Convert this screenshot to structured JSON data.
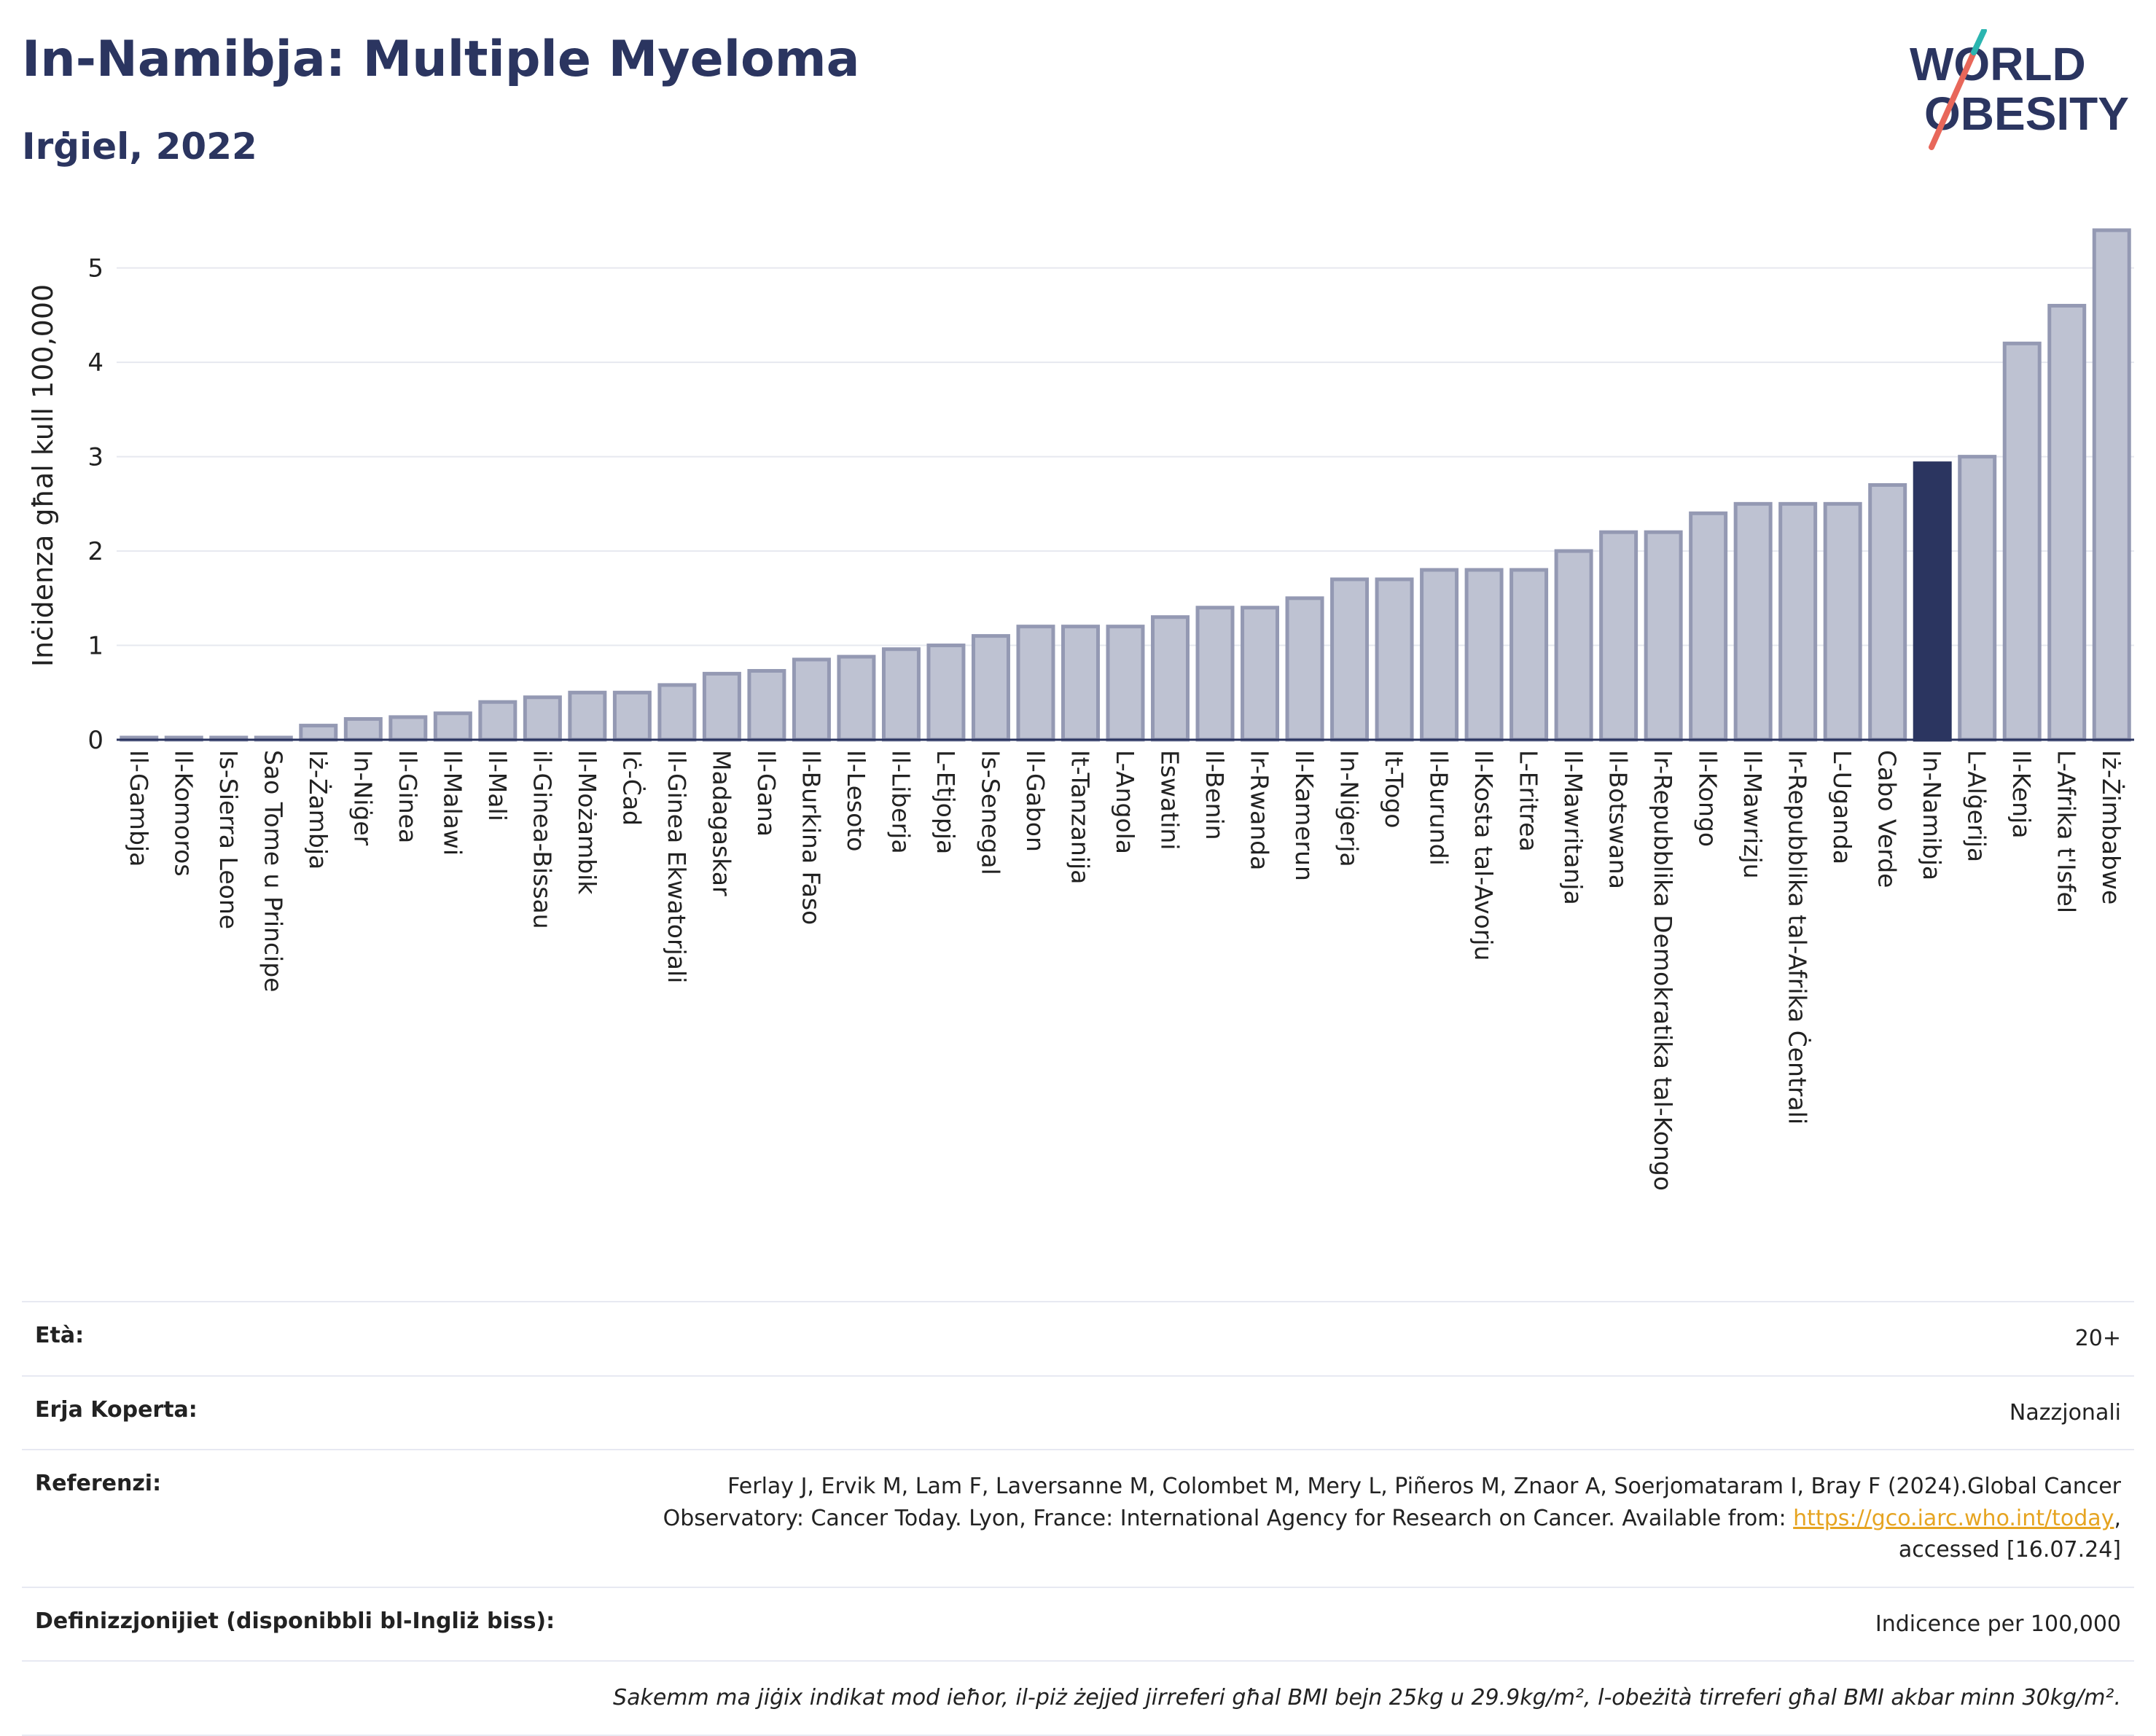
{
  "header": {
    "title": "In-Namibja: Multiple Myeloma",
    "subtitle": "Irġiel, 2022"
  },
  "logo": {
    "line1": "WORLD",
    "line2": "OBESITY"
  },
  "chart_data": {
    "type": "bar",
    "ylabel": "Inċidenza għal kull 100,000",
    "ylim": [
      0,
      5.6
    ],
    "yticks": [
      0,
      1,
      2,
      3,
      4,
      5
    ],
    "grid": true,
    "highlight": "In-Namibja",
    "colors": {
      "bar": "#bec2d2",
      "bar_edge": "#9499b3",
      "highlight": "#2b3560",
      "grid": "#e6e8ef"
    },
    "categories": [
      "Il-Gambja",
      "Il-Komoros",
      "Is-Sierra Leone",
      "Sao Tome u Principe",
      "Iż-Żambja",
      "In-Niġer",
      "Il-Ginea",
      "Il-Malawi",
      "Il-Mali",
      "il-Ginea-Bissau",
      "Il-Możambik",
      "Iċ-Ċad",
      "Il-Ginea Ekwatorjali",
      "Madagaskar",
      "Il-Gana",
      "Il-Burkina Faso",
      "Il-Lesoto",
      "Il-Liberja",
      "L-Etjopja",
      "Is-Senegal",
      "Il-Gabon",
      "It-Tanzanija",
      "L-Angola",
      "Eswatini",
      "Il-Benin",
      "Ir-Rwanda",
      "Il-Kamerun",
      "In-Niġerja",
      "It-Togo",
      "Il-Burundi",
      "Il-Kosta tal-Avorju",
      "L-Eritrea",
      "Il-Mawritanja",
      "Il-Botswana",
      "Ir-Repubblika Demokratika tal-Kongo",
      "Il-Kongo",
      "Il-Mawrizju",
      "Ir-Repubblika tal-Afrika Ċentrali",
      "L-Uganda",
      "Cabo Verde",
      "In-Namibja",
      "L-Alġerija",
      "Il-Kenja",
      "L-Afrika t'Isfel",
      "Iż-Żimbabwe"
    ],
    "values": [
      0.02,
      0.02,
      0.02,
      0.02,
      0.15,
      0.22,
      0.24,
      0.28,
      0.4,
      0.45,
      0.5,
      0.5,
      0.58,
      0.7,
      0.73,
      0.85,
      0.88,
      0.96,
      1.0,
      1.1,
      1.2,
      1.2,
      1.2,
      1.3,
      1.4,
      1.4,
      1.5,
      1.7,
      1.7,
      1.8,
      1.8,
      1.8,
      2.0,
      2.2,
      2.2,
      2.4,
      2.5,
      2.5,
      2.5,
      2.7,
      2.93,
      3.0,
      4.2,
      4.6,
      5.4
    ]
  },
  "info": {
    "age_label": "Età:",
    "age_value": "20+",
    "area_label": "Erja Koperta:",
    "area_value": "Nazzjonali",
    "ref_label": "Referenzi:",
    "ref_text_1": "Ferlay J, Ervik M, Lam F, Laversanne M, Colombet M, Mery L, Piñeros M, Znaor A, Soerjomataram I, Bray F (2024).Global Cancer",
    "ref_text_2": "Observatory: Cancer Today. Lyon, France: International Agency for Research on Cancer. Available from: ",
    "ref_link": "https://gco.iarc.who.int/today",
    "ref_text_3": ",",
    "ref_text_4": "accessed [16.07.24]",
    "def_label": "Definizzjonijiet (disponibbli bl-Ingliż biss):",
    "def_value": "Indicence per 100,000",
    "note": "Sakemm ma jiġix indikat mod ieħor, il-piż żejjed jirreferi għal BMI bejn 25kg u 29.9kg/m², l-obeżità tirreferi għal BMI akbar minn 30kg/m²."
  }
}
